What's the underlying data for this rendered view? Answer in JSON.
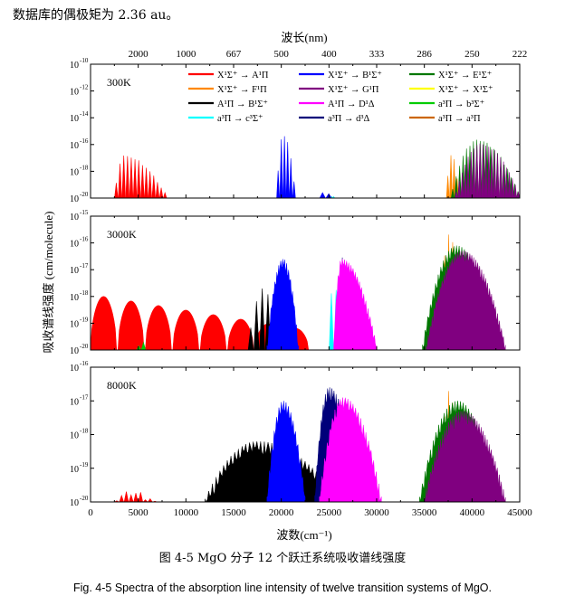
{
  "intro_text": "数据库的偶极矩为 2.36 au。",
  "caption_zh": "图 4-5 MgO 分子 12 个跃迁系统吸收谱线强度",
  "caption_en": "Fig. 4-5 Spectra of the absorption line intensity of twelve transition systems of MgO.",
  "colors": {
    "X-A": "#ff0000",
    "X-B": "#0000ff",
    "X-E": "#007700",
    "X-F": "#ff8800",
    "X-G": "#800080",
    "X-X": "#ffff00",
    "A-B": "#000000",
    "A-D": "#ff00ff",
    "a-b": "#00cc00",
    "a-c": "#00ffff",
    "a-d": "#00007a",
    "a-a": "#cc6600"
  },
  "chart_data": {
    "type": "area",
    "xlabel": "波数(cm⁻¹)",
    "ylabel": "吸收谱线强度 (cm/molecule)",
    "top_axis_label": "波长(nm)",
    "xlim": [
      0,
      45000
    ],
    "x_ticks": [
      "0",
      "5000",
      "10000",
      "15000",
      "20000",
      "25000",
      "30000",
      "35000",
      "40000",
      "45000"
    ],
    "top_ticks": [
      {
        "label": "2000",
        "wavenumber": 5000
      },
      {
        "label": "1000",
        "wavenumber": 10000
      },
      {
        "label": "667",
        "wavenumber": 15000
      },
      {
        "label": "500",
        "wavenumber": 20000
      },
      {
        "label": "400",
        "wavenumber": 25000
      },
      {
        "label": "333",
        "wavenumber": 30000
      },
      {
        "label": "286",
        "wavenumber": 35000
      },
      {
        "label": "250",
        "wavenumber": 40000
      },
      {
        "label": "222",
        "wavenumber": 45000
      }
    ],
    "legend": {
      "placement": "top (300K panel)",
      "entries": [
        {
          "key": "X-A",
          "label": "X¹Σ⁺ → A¹Π"
        },
        {
          "key": "X-B",
          "label": "X¹Σ⁺ → B¹Σ⁺"
        },
        {
          "key": "X-E",
          "label": "X¹Σ⁺ → E¹Σ⁺"
        },
        {
          "key": "X-F",
          "label": "X¹Σ⁺ → F¹Π"
        },
        {
          "key": "X-G",
          "label": "X¹Σ⁺ → G¹Π"
        },
        {
          "key": "X-X",
          "label": "X¹Σ⁺ → X¹Σ⁺"
        },
        {
          "key": "A-B",
          "label": "A¹Π → B¹Σ⁺"
        },
        {
          "key": "A-D",
          "label": "A¹Π → D¹Δ"
        },
        {
          "key": "a-b",
          "label": "a³Π → b³Σ⁺"
        },
        {
          "key": "a-c",
          "label": "a³Π → c³Σ⁺"
        },
        {
          "key": "a-d",
          "label": "a³Π → d³Δ"
        },
        {
          "key": "a-a",
          "label": "a³Π → a³Π"
        }
      ]
    },
    "panels": [
      {
        "label": "300K",
        "ylim_log10": [
          -20,
          -10
        ],
        "y_ticks": [
          "10",
          "10",
          "10",
          "10",
          "10",
          "10"
        ],
        "y_tick_exps": [
          "-10",
          "-12",
          "-14",
          "-16",
          "-18",
          "-20"
        ],
        "bands": [
          {
            "key": "X-A",
            "shape": "comb",
            "x0": 2500,
            "x1": 8000,
            "peak": -16.8,
            "peak_at": 3500,
            "count": 14
          },
          {
            "key": "X-B",
            "shape": "comb",
            "x0": 19500,
            "x1": 21500,
            "peak": -15.2,
            "peak_at": 20200,
            "count": 6
          },
          {
            "key": "X-B",
            "shape": "comb",
            "x0": 24000,
            "x1": 25300,
            "peak": -19.5,
            "peak_at": 24500,
            "count": 2
          },
          {
            "key": "a-c",
            "shape": "comb",
            "x0": 25200,
            "x1": 25600,
            "peak": -19.6,
            "peak_at": 25400,
            "count": 2
          },
          {
            "key": "X-F",
            "shape": "comb",
            "x0": 37300,
            "x1": 38600,
            "peak": -16.6,
            "peak_at": 37900,
            "count": 4
          },
          {
            "key": "X-E",
            "shape": "comb",
            "x0": 37800,
            "x1": 45000,
            "peak": -15.6,
            "peak_at": 40500,
            "count": 20
          },
          {
            "key": "X-G",
            "shape": "comb",
            "x0": 38200,
            "x1": 45000,
            "peak": -15.9,
            "peak_at": 41000,
            "count": 22
          }
        ]
      },
      {
        "label": "3000K",
        "ylim_log10": [
          -20,
          -15
        ],
        "y_ticks": [
          "10",
          "10",
          "10",
          "10",
          "10",
          "10"
        ],
        "y_tick_exps": [
          "-15",
          "-16",
          "-17",
          "-18",
          "-19",
          "-20"
        ],
        "bands": [
          {
            "key": "X-A",
            "shape": "arches",
            "x0": 0,
            "x1": 23000,
            "peak": -18.0,
            "peak_at": 1000,
            "count": 8
          },
          {
            "key": "a-b",
            "shape": "comb",
            "x0": 4800,
            "x1": 5800,
            "peak": -19.6,
            "peak_at": 5300,
            "count": 2
          },
          {
            "key": "A-B",
            "shape": "comb",
            "x0": 16500,
            "x1": 19500,
            "peak": -17.5,
            "peak_at": 18200,
            "count": 5
          },
          {
            "key": "X-B",
            "shape": "fill",
            "x0": 18500,
            "x1": 21800,
            "peak": -16.6,
            "peak_at": 20200,
            "count": 8
          },
          {
            "key": "a-c",
            "shape": "comb",
            "x0": 25000,
            "x1": 26000,
            "peak": -17.0,
            "peak_at": 25500,
            "count": 2
          },
          {
            "key": "a-d",
            "shape": "comb",
            "x0": 25800,
            "x1": 26600,
            "peak": -16.1,
            "peak_at": 26300,
            "count": 2
          },
          {
            "key": "A-D",
            "shape": "fill",
            "x0": 25500,
            "x1": 30000,
            "peak": -16.6,
            "peak_at": 26300,
            "count": 10
          },
          {
            "key": "X-F",
            "shape": "comb",
            "x0": 36500,
            "x1": 38600,
            "peak": -15.5,
            "peak_at": 37700,
            "count": 5
          },
          {
            "key": "X-E",
            "shape": "fill",
            "x0": 34800,
            "x1": 42500,
            "peak": -16.1,
            "peak_at": 38400,
            "count": 14
          },
          {
            "key": "X-G",
            "shape": "fill",
            "x0": 35200,
            "x1": 43500,
            "peak": -16.3,
            "peak_at": 39000,
            "count": 20
          }
        ]
      },
      {
        "label": "8000K",
        "ylim_log10": [
          -20,
          -16
        ],
        "y_ticks": [
          "10",
          "10",
          "10",
          "10",
          "10"
        ],
        "y_tick_exps": [
          "-16",
          "-17",
          "-18",
          "-19",
          "-20"
        ],
        "bands": [
          {
            "key": "X-A",
            "shape": "comb",
            "x0": 2500,
            "x1": 7000,
            "peak": -19.6,
            "peak_at": 3500,
            "count": 9
          },
          {
            "key": "A-B",
            "shape": "fill",
            "x0": 12000,
            "x1": 26000,
            "peak": -18.2,
            "peak_at": 17500,
            "count": 18
          },
          {
            "key": "X-B",
            "shape": "fill",
            "x0": 18500,
            "x1": 22500,
            "peak": -17.0,
            "peak_at": 20200,
            "count": 8
          },
          {
            "key": "a-d",
            "shape": "fill",
            "x0": 23500,
            "x1": 28000,
            "peak": -16.6,
            "peak_at": 25000,
            "count": 10
          },
          {
            "key": "A-D",
            "shape": "fill",
            "x0": 24000,
            "x1": 30500,
            "peak": -16.9,
            "peak_at": 26500,
            "count": 12
          },
          {
            "key": "X-F",
            "shape": "comb",
            "x0": 36500,
            "x1": 38600,
            "peak": -16.6,
            "peak_at": 37700,
            "count": 5
          },
          {
            "key": "X-E",
            "shape": "fill",
            "x0": 34500,
            "x1": 42500,
            "peak": -17.0,
            "peak_at": 38500,
            "count": 14
          },
          {
            "key": "X-G",
            "shape": "fill",
            "x0": 35000,
            "x1": 43500,
            "peak": -17.3,
            "peak_at": 39000,
            "count": 20
          }
        ]
      }
    ]
  }
}
